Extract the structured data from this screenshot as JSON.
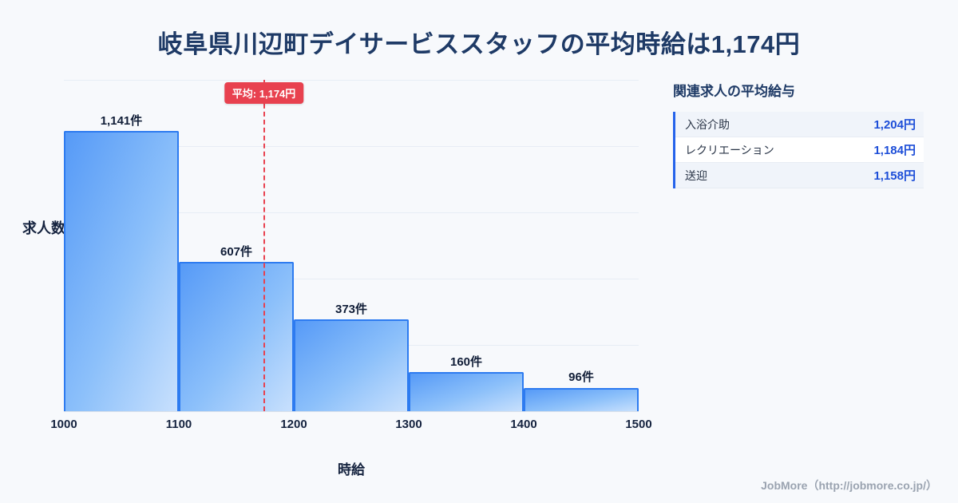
{
  "title": "岐阜県川辺町デイサービススタッフの平均時給は1,174円",
  "chart_data": {
    "type": "bar",
    "title": "岐阜県川辺町デイサービススタッフの平均時給は1,174円",
    "xlabel": "時給",
    "ylabel": "求人数",
    "xlim": [
      1000,
      1500
    ],
    "ylim": [
      0,
      1350
    ],
    "grid": true,
    "x_ticks": [
      "1000",
      "1100",
      "1200",
      "1300",
      "1400",
      "1500"
    ],
    "bins": [
      {
        "range": [
          1000,
          1100
        ],
        "count": 1141,
        "label": "1,141件"
      },
      {
        "range": [
          1100,
          1200
        ],
        "count": 607,
        "label": "607件"
      },
      {
        "range": [
          1200,
          1300
        ],
        "count": 373,
        "label": "373件"
      },
      {
        "range": [
          1300,
          1400
        ],
        "count": 160,
        "label": "160件"
      },
      {
        "range": [
          1400,
          1500
        ],
        "count": 96,
        "label": "96件"
      }
    ],
    "average_line": {
      "value": 1174,
      "label": "平均: 1,174円"
    }
  },
  "side_panel": {
    "heading": "関連求人の平均給与",
    "rows": [
      {
        "label": "入浴介助",
        "value": "1,204円"
      },
      {
        "label": "レクリエーション",
        "value": "1,184円"
      },
      {
        "label": "送迎",
        "value": "1,158円"
      }
    ]
  },
  "footer": {
    "credit": "JobMore（http://jobmore.co.jp/）"
  },
  "colors": {
    "background": "#f7f9fc",
    "title_navy": "#1e3a66",
    "bar_border": "#2d7bf0",
    "bar_gradient_start": "#569af7",
    "bar_gradient_end": "#c8e0fd",
    "average_red": "#e8414f",
    "value_blue": "#1d4ed8",
    "panel_accent": "#2563eb"
  }
}
